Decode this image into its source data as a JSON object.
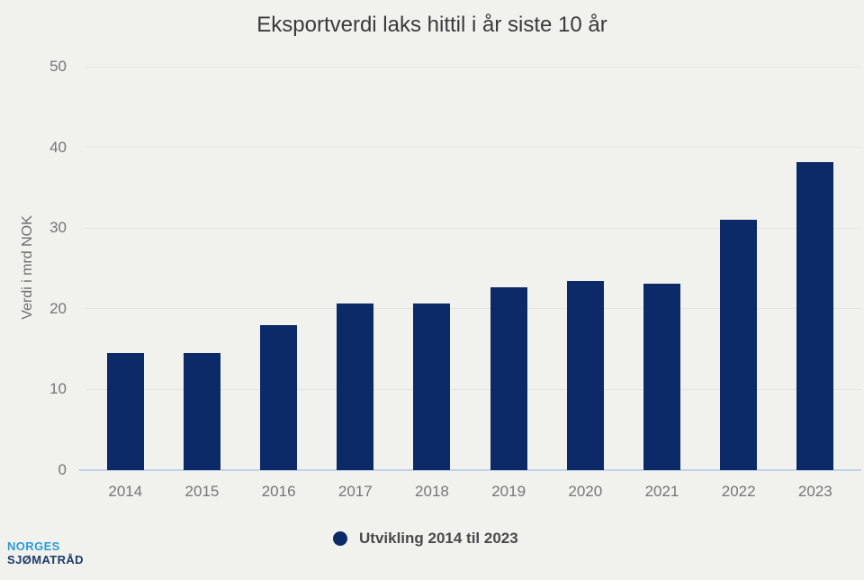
{
  "page": {
    "background": "#f1f2ee"
  },
  "chart_data": {
    "type": "bar",
    "title": "Eksportverdi laks hittil i år siste 10 år",
    "xlabel": "",
    "ylabel": "Verdi i mrd NOK",
    "categories": [
      "2014",
      "2015",
      "2016",
      "2017",
      "2018",
      "2019",
      "2020",
      "2021",
      "2022",
      "2023"
    ],
    "values": [
      14.5,
      14.5,
      18.0,
      20.7,
      20.7,
      22.7,
      23.4,
      23.1,
      31.0,
      38.2
    ],
    "series_name": "Utvikling 2014 til 2023",
    "ylim": [
      0,
      50
    ],
    "yticks": [
      0,
      10,
      20,
      30,
      40,
      50
    ],
    "grid": true,
    "legend_position": "bottom",
    "bar_color": "#0d2a68"
  },
  "legend": {
    "label": "Utvikling 2014 til 2023",
    "marker_color": "#0d2a68"
  },
  "logo": {
    "line1": "NORGES",
    "line2": "SJØMATRÅD",
    "line1_color": "#2b9bd7",
    "line2_color": "#1d3968"
  },
  "colors": {
    "bar": "#0d2a68",
    "axis_line": "#c3d0ea",
    "gridline": "#e4e5e0",
    "tick_text": "#757575",
    "title_text": "#3a3a3a"
  }
}
